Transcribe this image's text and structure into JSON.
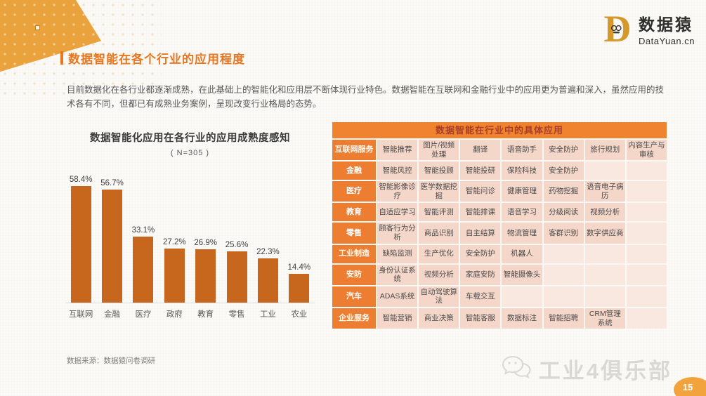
{
  "page": {
    "title": "数据智能在各个行业的应用程度",
    "paragraph": "目前数据化在各行业都逐渐成熟，在此基础上的智能化和应用层不断体现行业特色。数据智能在互联网和金融行业中的应用更为普遍和深入，虽然应用的技术各有不同，但都已有成熟业务案例，呈现改变行业格局的态势。",
    "source_note": "数据来源：数据猿问卷调研",
    "page_number": "15"
  },
  "logo": {
    "brand_cn": "数据猿",
    "brand_en": "DataYuan.cn"
  },
  "watermark": {
    "text": "工业4俱乐部"
  },
  "chart_data": {
    "type": "bar",
    "title": "数据智能化应用在各行业的应用成熟度感知",
    "subtitle": "( N=305 )",
    "categories": [
      "互联网",
      "金融",
      "医疗",
      "政府",
      "教育",
      "零售",
      "工业",
      "农业"
    ],
    "values": [
      58.4,
      56.7,
      33.1,
      27.2,
      26.9,
      25.6,
      22.3,
      14.4
    ],
    "value_labels": [
      "58.4%",
      "56.7%",
      "33.1%",
      "27.2%",
      "26.9%",
      "25.6%",
      "22.3%",
      "14.4%"
    ],
    "xlabel": "",
    "ylabel": "",
    "ylim": [
      0,
      60
    ],
    "grid": false,
    "legend": "none",
    "bar_color": "#c6671d"
  },
  "table": {
    "title": "数据智能在行业中的具体应用",
    "rows": [
      {
        "label": "互联网服务",
        "cells": [
          "智能推荐",
          "图片/视频处理",
          "翻译",
          "语音助手",
          "安全防护",
          "旅行规划",
          "内容生产与审核"
        ]
      },
      {
        "label": "金融",
        "cells": [
          "智能风控",
          "智能投顾",
          "智能投研",
          "保险科技",
          "安全防护",
          "",
          ""
        ]
      },
      {
        "label": "医疗",
        "cells": [
          "智能影像诊疗",
          "医学数据挖掘",
          "智能问诊",
          "健康管理",
          "药物挖掘",
          "语音电子病历",
          ""
        ]
      },
      {
        "label": "教育",
        "cells": [
          "自适应学习",
          "智能评测",
          "智能排课",
          "语音学习",
          "分级阅读",
          "视频分析",
          ""
        ]
      },
      {
        "label": "零售",
        "cells": [
          "顾客行为分析",
          "商品识别",
          "自主结算",
          "物流管理",
          "客群识别",
          "数字供应商",
          ""
        ]
      },
      {
        "label": "工业制造",
        "cells": [
          "缺陷监测",
          "生产优化",
          "安全防护",
          "机器人",
          "",
          "",
          ""
        ]
      },
      {
        "label": "安防",
        "cells": [
          "身份认证系统",
          "视频分析",
          "家庭安防",
          "智能摄像头",
          "",
          "",
          ""
        ]
      },
      {
        "label": "汽车",
        "cells": [
          "ADAS系统",
          "自动驾驶算法",
          "车载交互",
          "",
          "",
          "",
          ""
        ]
      },
      {
        "label": "企业服务",
        "cells": [
          "智能营销",
          "商业决策",
          "智能客服",
          "数据标注",
          "智能招聘",
          "CRM管理系统",
          ""
        ]
      }
    ]
  }
}
